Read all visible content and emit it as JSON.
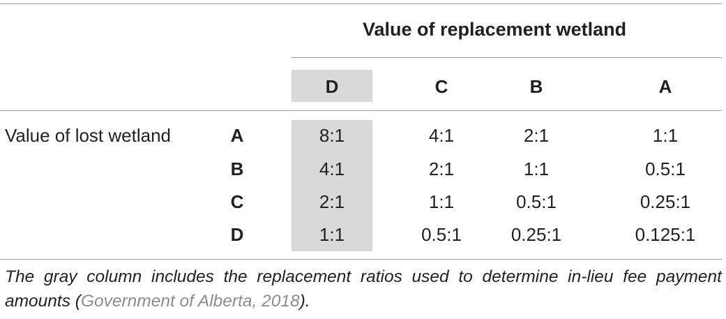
{
  "table": {
    "spanning_header": "Value of replacement wetland",
    "row_group_label": "Value of lost wetland",
    "column_headers": [
      "D",
      "C",
      "B",
      "A"
    ],
    "highlighted_column": "D",
    "highlight_color": "#d9d9d9",
    "rows": [
      {
        "label": "A",
        "values": [
          "8:1",
          "4:1",
          "2:1",
          "1:1"
        ]
      },
      {
        "label": "B",
        "values": [
          "4:1",
          "2:1",
          "1:1",
          "0.5:1"
        ]
      },
      {
        "label": "C",
        "values": [
          "2:1",
          "1:1",
          "0.5:1",
          "0.25:1"
        ]
      },
      {
        "label": "D",
        "values": [
          "1:1",
          "0.5:1",
          "0.25:1",
          "0.125:1"
        ]
      }
    ]
  },
  "caption": {
    "text_before": "The gray column includes the replacement ratios used to determine in-lieu fee payment amounts (",
    "citation": "Government of Alberta, 2018",
    "text_after": ")."
  }
}
